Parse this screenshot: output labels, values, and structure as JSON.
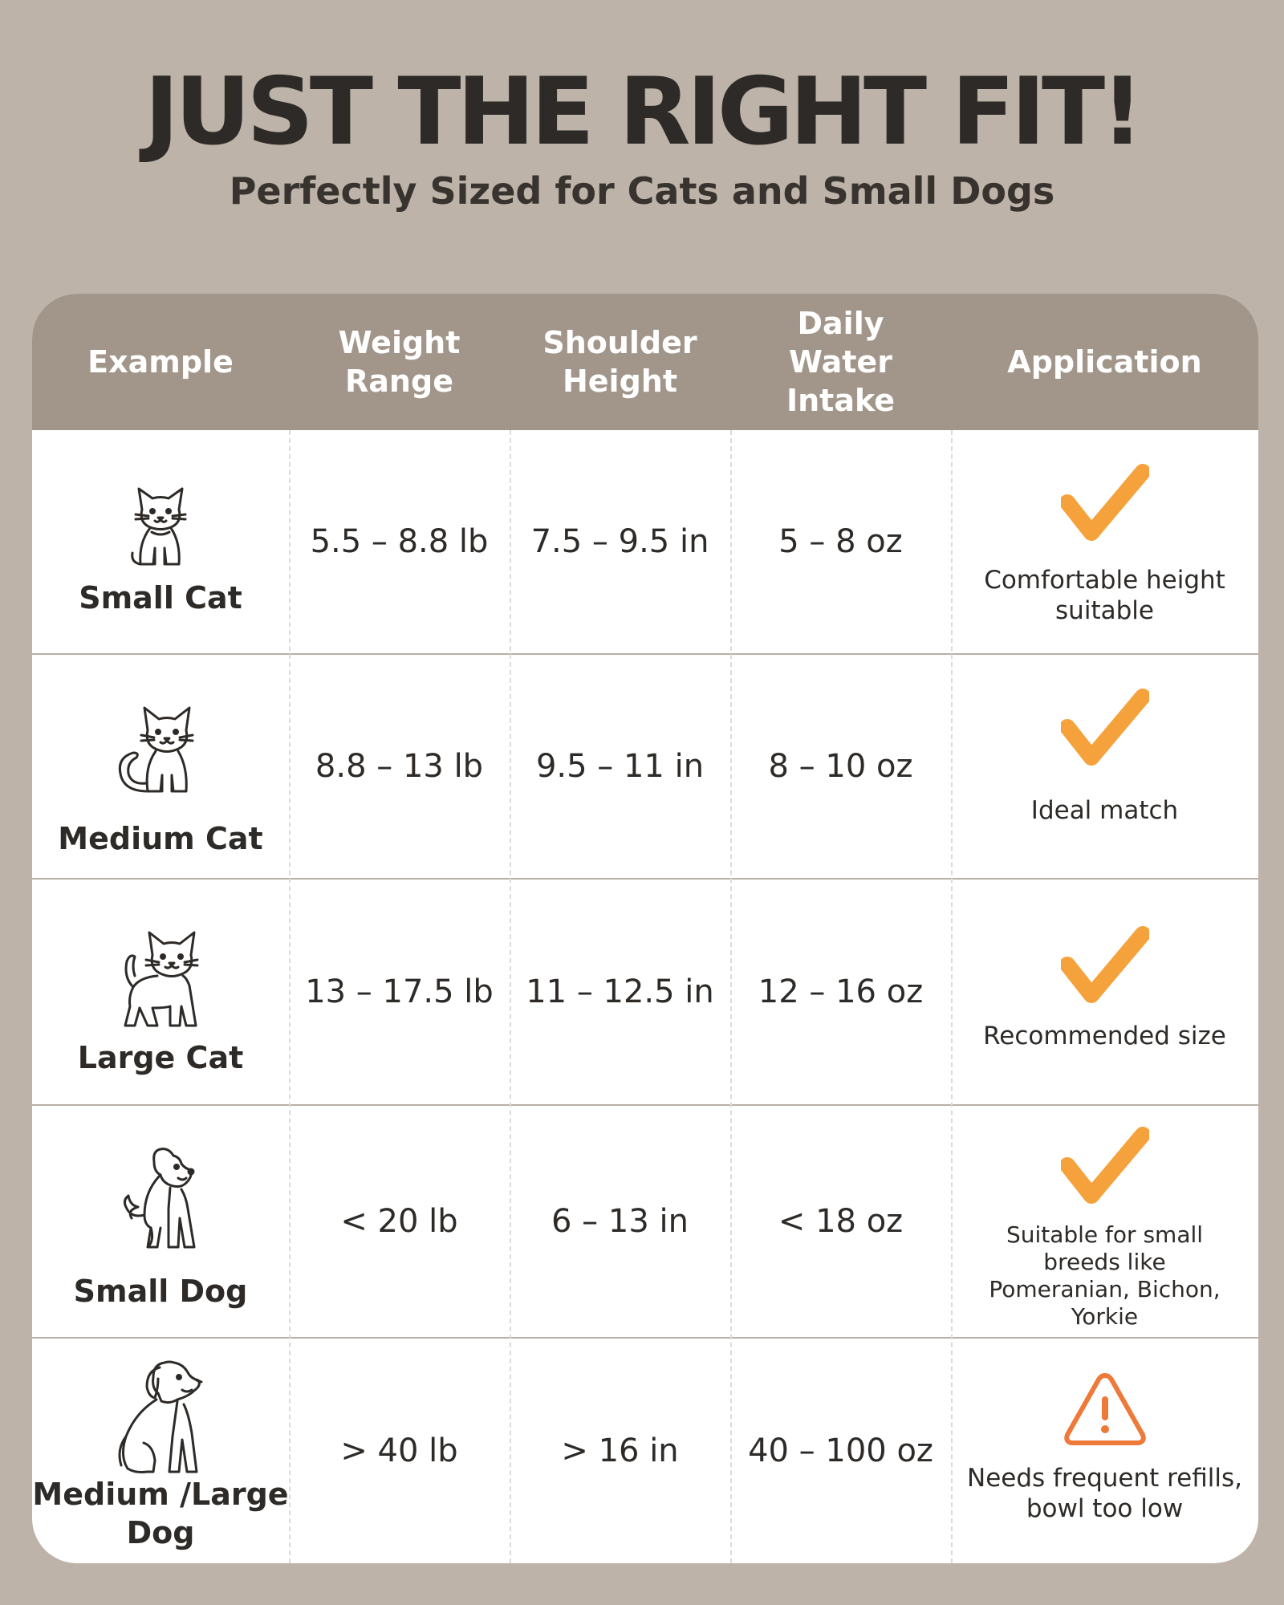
{
  "header": {
    "title": "JUST THE RIGHT FIT!",
    "subtitle": "Perfectly Sized for Cats and Small Dogs"
  },
  "table": {
    "columns": [
      "Example",
      "Weight Range",
      "Shoulder Height",
      "Daily Water Intake",
      "Application"
    ],
    "rows": [
      {
        "example": "Small Cat",
        "icon": "small-cat-icon",
        "weight": "5.5 – 8.8 lb",
        "height": "7.5 – 9.5 in",
        "water": "5 – 8 oz",
        "status_icon": "checkmark-icon",
        "application": "Comfortable height suitable"
      },
      {
        "example": "Medium Cat",
        "icon": "medium-cat-icon",
        "weight": "8.8 – 13 lb",
        "height": "9.5 – 11 in",
        "water": "8 – 10 oz",
        "status_icon": "checkmark-icon",
        "application": "Ideal match"
      },
      {
        "example": "Large Cat",
        "icon": "large-cat-icon",
        "weight": "13 – 17.5 lb",
        "height": "11 – 12.5 in",
        "water": "12 – 16 oz",
        "status_icon": "checkmark-icon",
        "application": "Recommended size"
      },
      {
        "example": "Small Dog",
        "icon": "small-dog-icon",
        "weight": "< 20 lb",
        "height": "6 – 13 in",
        "water": "< 18 oz",
        "status_icon": "checkmark-icon",
        "application": "Suitable for small breeds like Pomeranian, Bichon, Yorkie"
      },
      {
        "example": "Medium /Large Dog",
        "icon": "large-dog-icon",
        "weight": "> 40 lb",
        "height": "> 16 in",
        "water": "40 – 100 oz",
        "status_icon": "warning-icon",
        "application": "Needs frequent refills, bowl too low"
      }
    ]
  },
  "colors": {
    "background": "#bdb3a8",
    "header_band": "#a2968a",
    "accent_orange": "#f5a23c",
    "warning_orange": "#ee7a3a",
    "text_dark": "#2d2a27"
  }
}
